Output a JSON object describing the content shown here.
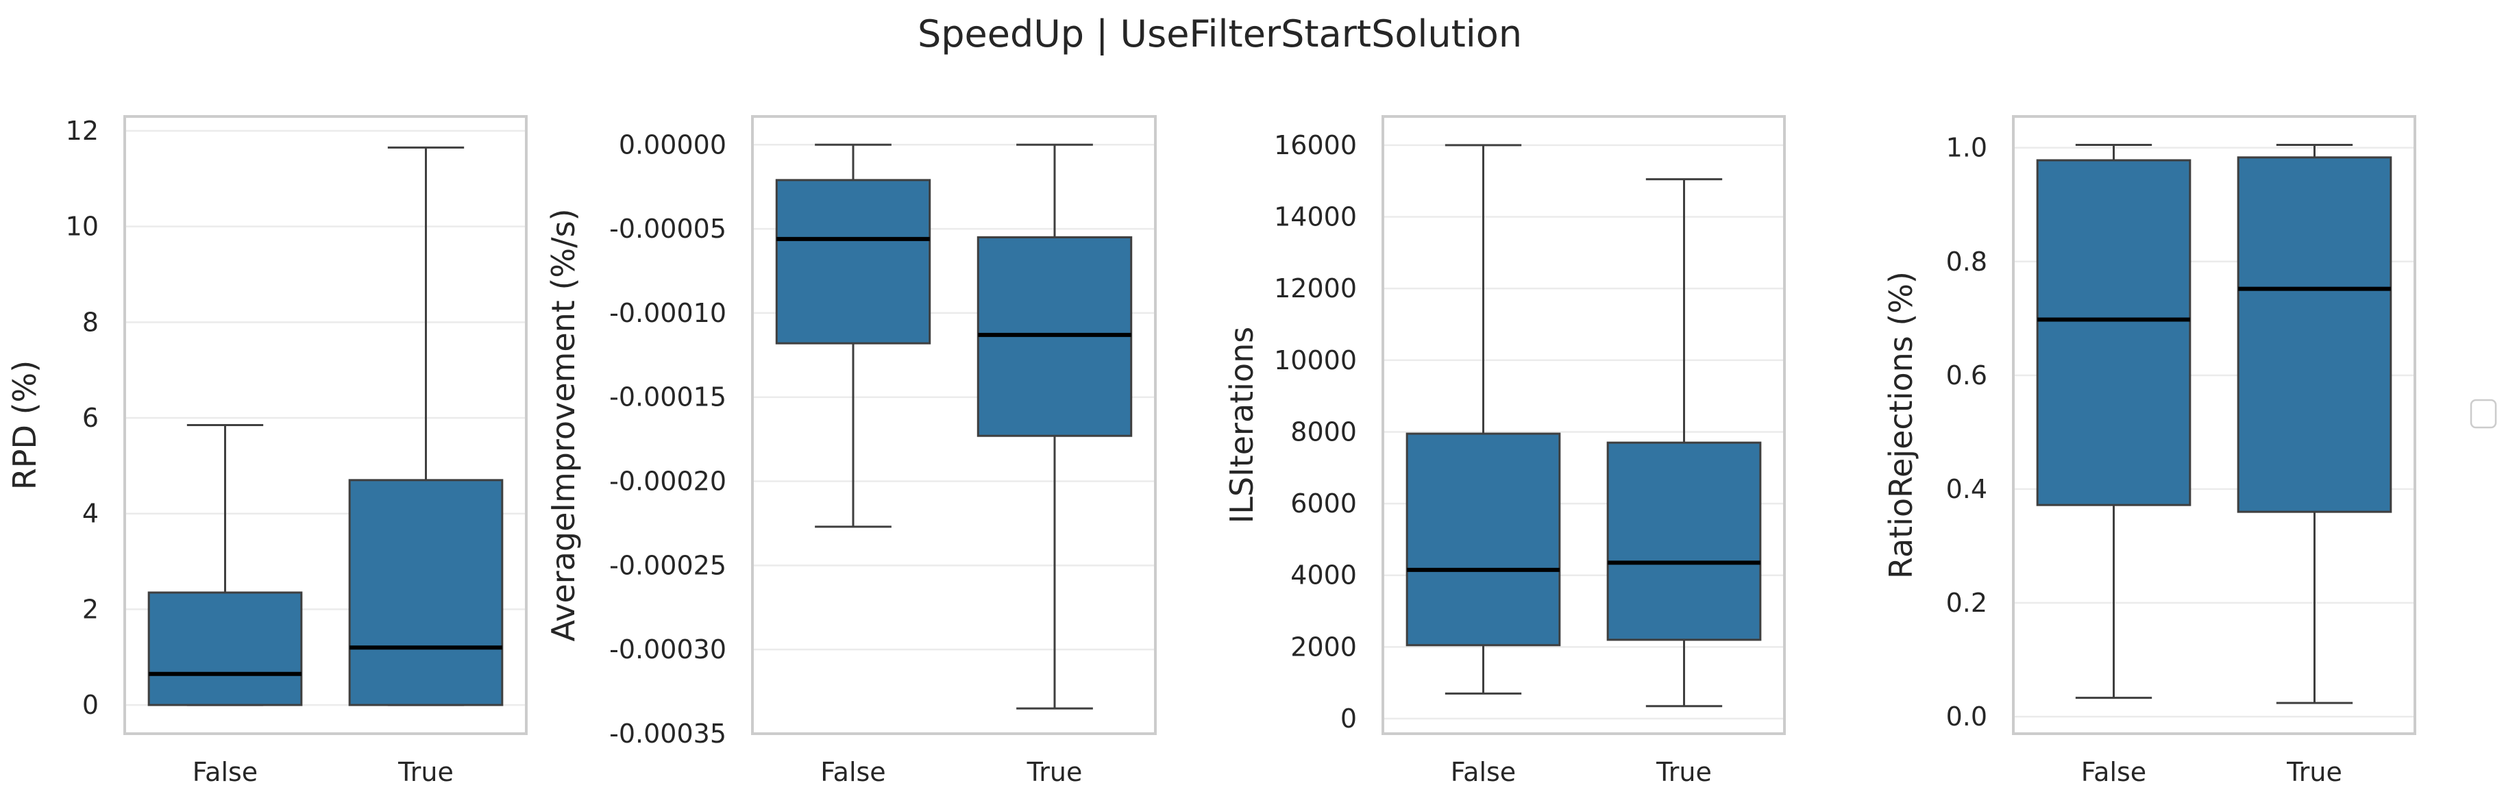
{
  "title": "SpeedUp | UseFilterStartSolution",
  "colors": {
    "box_fill": "#3274a1",
    "box_edge": "#3f3f3f",
    "median": "#000000",
    "whisker": "#3f3f3f",
    "grid": "#ebebeb",
    "frame": "#cccccc",
    "text": "#262626"
  },
  "chart_data": [
    {
      "type": "box",
      "ylabel": "RPD (%)",
      "categories": [
        "False",
        "True"
      ],
      "yticks": [
        0,
        2,
        4,
        6,
        8,
        10,
        12
      ],
      "tick_labels": [
        "0",
        "2",
        "4",
        "6",
        "8",
        "10",
        "12"
      ],
      "ylim": [
        -0.6,
        12.3
      ],
      "grid": true,
      "boxes": [
        {
          "category": "False",
          "whisker_low": 0.0,
          "q1": 0.0,
          "median": 0.65,
          "q3": 2.35,
          "whisker_high": 5.85
        },
        {
          "category": "True",
          "whisker_low": 0.0,
          "q1": 0.0,
          "median": 1.2,
          "q3": 4.7,
          "whisker_high": 11.65
        }
      ]
    },
    {
      "type": "box",
      "ylabel": "AverageImprovement (%/s)",
      "categories": [
        "False",
        "True"
      ],
      "yticks": [
        0,
        -5e-05,
        -0.0001,
        -0.00015,
        -0.0002,
        -0.00025,
        -0.0003,
        -0.00035
      ],
      "tick_labels": [
        "0.00000",
        "-0.00005",
        "-0.00010",
        "-0.00015",
        "-0.00020",
        "-0.00025",
        "-0.00030",
        "-0.00035"
      ],
      "ylim": [
        -0.00035,
        1.68e-05
      ],
      "grid": true,
      "boxes": [
        {
          "category": "False",
          "whisker_low": -0.000227,
          "q1": -0.000118,
          "median": -5.6e-05,
          "q3": -2.1e-05,
          "whisker_high": 0.0
        },
        {
          "category": "True",
          "whisker_low": -0.000335,
          "q1": -0.000173,
          "median": -0.000113,
          "q3": -5.5e-05,
          "whisker_high": 0.0
        }
      ]
    },
    {
      "type": "box",
      "ylabel": "ILSIterations",
      "categories": [
        "False",
        "True"
      ],
      "yticks": [
        0,
        2000,
        4000,
        6000,
        8000,
        10000,
        12000,
        14000,
        16000
      ],
      "tick_labels": [
        "0",
        "2000",
        "4000",
        "6000",
        "8000",
        "10000",
        "12000",
        "14000",
        "16000"
      ],
      "ylim": [
        -420,
        16800
      ],
      "grid": true,
      "boxes": [
        {
          "category": "False",
          "whisker_low": 700,
          "q1": 2050,
          "median": 4150,
          "q3": 7950,
          "whisker_high": 16000
        },
        {
          "category": "True",
          "whisker_low": 350,
          "q1": 2200,
          "median": 4350,
          "q3": 7700,
          "whisker_high": 15050
        }
      ]
    },
    {
      "type": "box",
      "ylabel": "RatioRejections (%)",
      "categories": [
        "False",
        "True"
      ],
      "yticks": [
        0.0,
        0.2,
        0.4,
        0.6,
        0.8,
        1.0
      ],
      "tick_labels": [
        "0.0",
        "0.2",
        "0.4",
        "0.6",
        "0.8",
        "1.0"
      ],
      "ylim": [
        -0.03,
        1.055
      ],
      "grid": true,
      "boxes": [
        {
          "category": "False",
          "whisker_low": 0.033,
          "q1": 0.372,
          "median": 0.698,
          "q3": 0.978,
          "whisker_high": 1.005
        },
        {
          "category": "True",
          "whisker_low": 0.024,
          "q1": 0.36,
          "median": 0.752,
          "q3": 0.983,
          "whisker_high": 1.005
        }
      ]
    }
  ]
}
